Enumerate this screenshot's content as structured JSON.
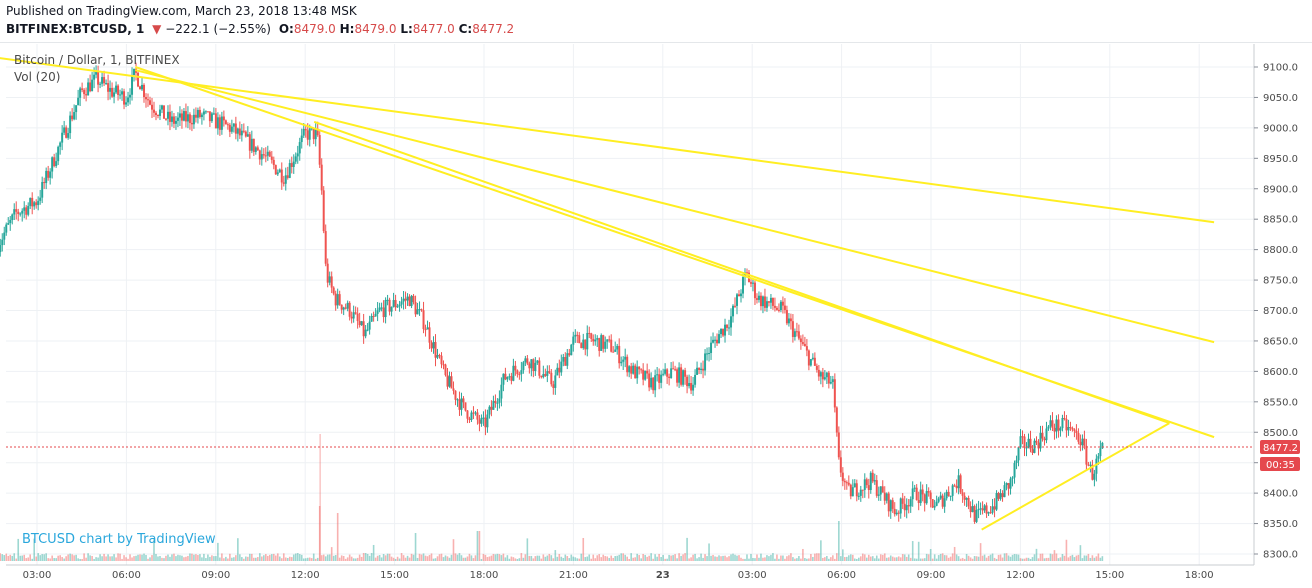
{
  "header": {
    "published": "Published on TradingView.com, March 23, 2018 13:48 MSK",
    "symbol": "BITFINEX:BTCUSD, 1",
    "change_arrow": "▼",
    "change": "−222.1 (−2.55%)",
    "o_label": "O:",
    "o": "8479.0",
    "h_label": "H:",
    "h": "8479.0",
    "l_label": "L:",
    "l": "8477.0",
    "c_label": "C:",
    "c": "8477.2"
  },
  "legend": {
    "title": "Bitcoin / Dollar, 1, BITFINEX",
    "indicator": "Vol (20)"
  },
  "watermark": "BTCUSD chart by TradingView",
  "price_badge": {
    "price": "8477.2",
    "countdown": "00:35",
    "color": "#e5484d"
  },
  "colors": {
    "up": "#26a69a",
    "down": "#ef5350",
    "trendline": "#ffee22",
    "grid": "#eef1f4"
  },
  "chart_data": {
    "type": "candlestick",
    "symbol": "BITFINEX:BTCUSD",
    "interval": "1",
    "ylim": [
      8290,
      9120
    ],
    "y_ticks": [
      8300,
      8350,
      8400,
      8450,
      8500,
      8550,
      8600,
      8650,
      8700,
      8750,
      8800,
      8850,
      8900,
      8950,
      9000,
      9050,
      9100
    ],
    "x_ticks": [
      "03:00",
      "06:00",
      "09:00",
      "12:00",
      "15:00",
      "18:00",
      "21:00",
      "23",
      "03:00",
      "06:00",
      "09:00",
      "12:00",
      "15:00",
      "18:00"
    ],
    "x_range_hours": [
      1.7,
      42.5
    ],
    "last_price": 8477.2,
    "price_path": [
      [
        1.7,
        8810
      ],
      [
        2.3,
        8860
      ],
      [
        3.0,
        8880
      ],
      [
        3.5,
        8940
      ],
      [
        4.0,
        9000
      ],
      [
        4.5,
        9060
      ],
      [
        5.0,
        9080
      ],
      [
        5.5,
        9060
      ],
      [
        6.0,
        9050
      ],
      [
        6.3,
        9090
      ],
      [
        6.8,
        9040
      ],
      [
        7.5,
        9010
      ],
      [
        8.5,
        9020
      ],
      [
        9.5,
        9000
      ],
      [
        10.5,
        8960
      ],
      [
        11.3,
        8920
      ],
      [
        12.0,
        8990
      ],
      [
        12.4,
        8990
      ],
      [
        12.55,
        8900
      ],
      [
        12.7,
        8760
      ],
      [
        13.0,
        8720
      ],
      [
        13.5,
        8700
      ],
      [
        14.0,
        8660
      ],
      [
        14.5,
        8700
      ],
      [
        15.5,
        8720
      ],
      [
        16.0,
        8680
      ],
      [
        16.7,
        8590
      ],
      [
        17.3,
        8540
      ],
      [
        18.0,
        8510
      ],
      [
        18.7,
        8590
      ],
      [
        19.5,
        8620
      ],
      [
        20.3,
        8580
      ],
      [
        21.0,
        8650
      ],
      [
        21.7,
        8650
      ],
      [
        22.3,
        8640
      ],
      [
        23.0,
        8600
      ],
      [
        23.7,
        8580
      ],
      [
        24.3,
        8600
      ],
      [
        25.0,
        8580
      ],
      [
        25.6,
        8640
      ],
      [
        26.3,
        8690
      ],
      [
        26.8,
        8760
      ],
      [
        27.2,
        8720
      ],
      [
        28.0,
        8700
      ],
      [
        28.7,
        8640
      ],
      [
        29.3,
        8590
      ],
      [
        29.7,
        8580
      ],
      [
        29.9,
        8450
      ],
      [
        30.2,
        8400
      ],
      [
        31.0,
        8420
      ],
      [
        31.8,
        8370
      ],
      [
        32.5,
        8400
      ],
      [
        33.2,
        8380
      ],
      [
        33.9,
        8420
      ],
      [
        34.5,
        8360
      ],
      [
        35.1,
        8380
      ],
      [
        35.7,
        8420
      ],
      [
        36.0,
        8480
      ],
      [
        36.5,
        8480
      ],
      [
        37.0,
        8510
      ],
      [
        37.5,
        8510
      ],
      [
        38.0,
        8490
      ],
      [
        38.4,
        8430
      ],
      [
        38.8,
        8477.2
      ]
    ],
    "volume_spikes": [
      [
        12.5,
        55
      ],
      [
        13.1,
        48
      ],
      [
        14.0,
        8
      ],
      [
        15.7,
        28
      ],
      [
        17.8,
        30
      ],
      [
        29.9,
        40
      ],
      [
        33.0,
        12
      ]
    ],
    "trendlines": [
      {
        "from": [
          1.7,
          9115
        ],
        "to": [
          42.5,
          8845
        ]
      },
      {
        "from": [
          6.3,
          9095
        ],
        "to": [
          42.5,
          8648
        ]
      },
      {
        "from": [
          6.3,
          9100
        ],
        "to": [
          42.5,
          8492
        ]
      },
      {
        "from": [
          34.7,
          8340
        ],
        "to": [
          41.0,
          8515
        ]
      },
      {
        "from": [
          12.3,
          9010
        ],
        "to": [
          41.0,
          8515
        ]
      }
    ]
  }
}
